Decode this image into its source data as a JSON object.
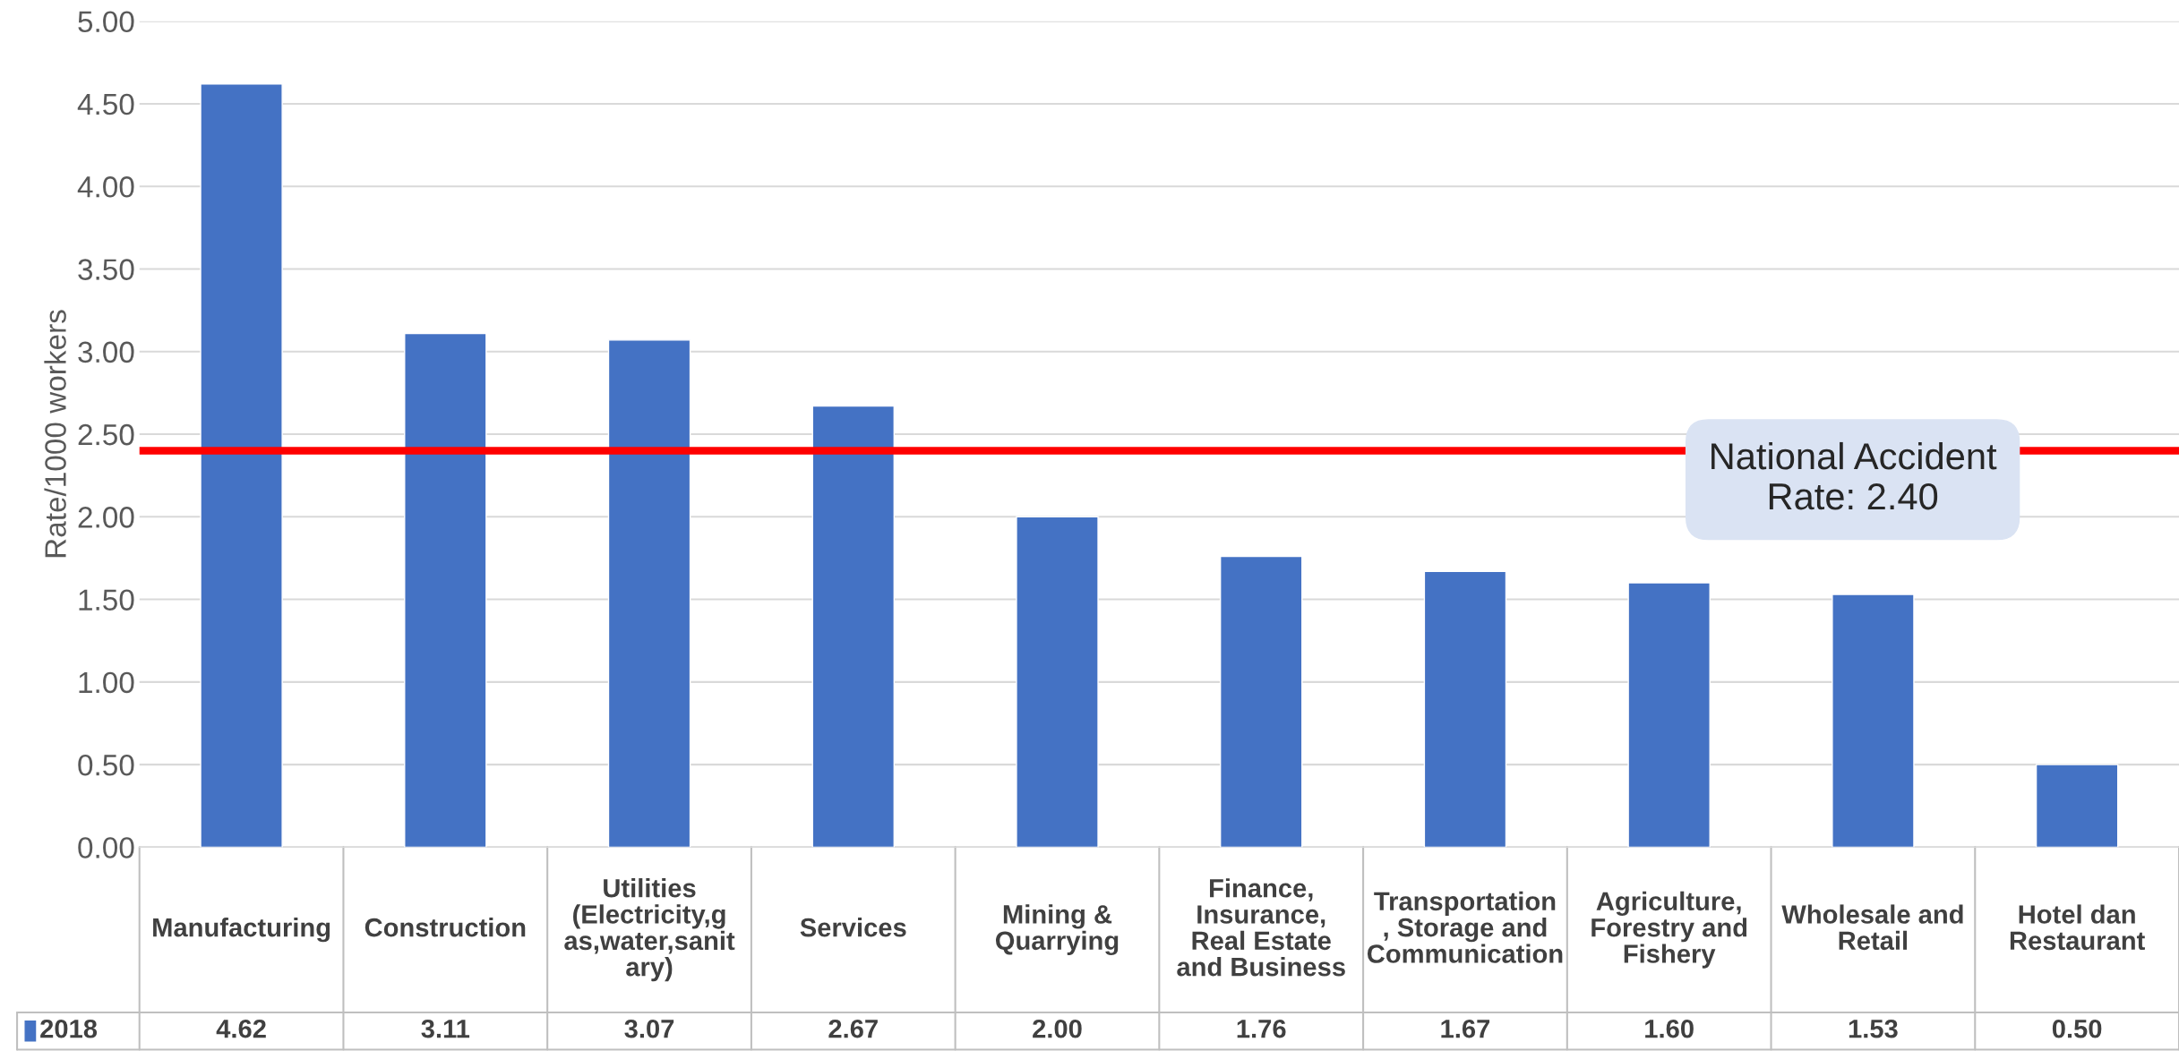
{
  "chart_data": {
    "type": "bar",
    "ylabel": "Rate/1000 workers",
    "categories": [
      "Manufacturing",
      "Construction",
      "Utilities (Electricity,gas,water,sanitary)",
      "Services",
      "Mining & Quarrying",
      "Finance, Insurance, Real Estate and Business",
      "Transportation, Storage and Communication",
      "Agriculture, Forestry and Fishery",
      "Wholesale and Retail",
      "Hotel dan Restaurant"
    ],
    "series": [
      {
        "name": "2018",
        "color": "#4472c4",
        "values": [
          4.62,
          3.11,
          3.07,
          2.67,
          2.0,
          1.76,
          1.67,
          1.6,
          1.53,
          0.5
        ],
        "value_labels": [
          "4.62",
          "3.11",
          "3.07",
          "2.67",
          "2.00",
          "1.76",
          "1.67",
          "1.60",
          "1.53",
          "0.50"
        ]
      }
    ],
    "ylim": [
      0,
      5
    ],
    "yticks": [
      {
        "value": 0,
        "label": "0.00"
      },
      {
        "value": 0.5,
        "label": "0.50"
      },
      {
        "value": 1,
        "label": "1.00"
      },
      {
        "value": 1.5,
        "label": "1.50"
      },
      {
        "value": 2,
        "label": "2.00"
      },
      {
        "value": 2.5,
        "label": "2.50"
      },
      {
        "value": 3,
        "label": "3.00"
      },
      {
        "value": 3.5,
        "label": "3.50"
      },
      {
        "value": 4,
        "label": "4.00"
      },
      {
        "value": 4.5,
        "label": "4.50"
      },
      {
        "value": 5,
        "label": "5.00"
      }
    ],
    "grid": "y",
    "ref_lines": [
      {
        "axis": "y",
        "value": 2.4,
        "label": "National Accident Rate: 2.40",
        "color": "#ff0000"
      }
    ]
  }
}
